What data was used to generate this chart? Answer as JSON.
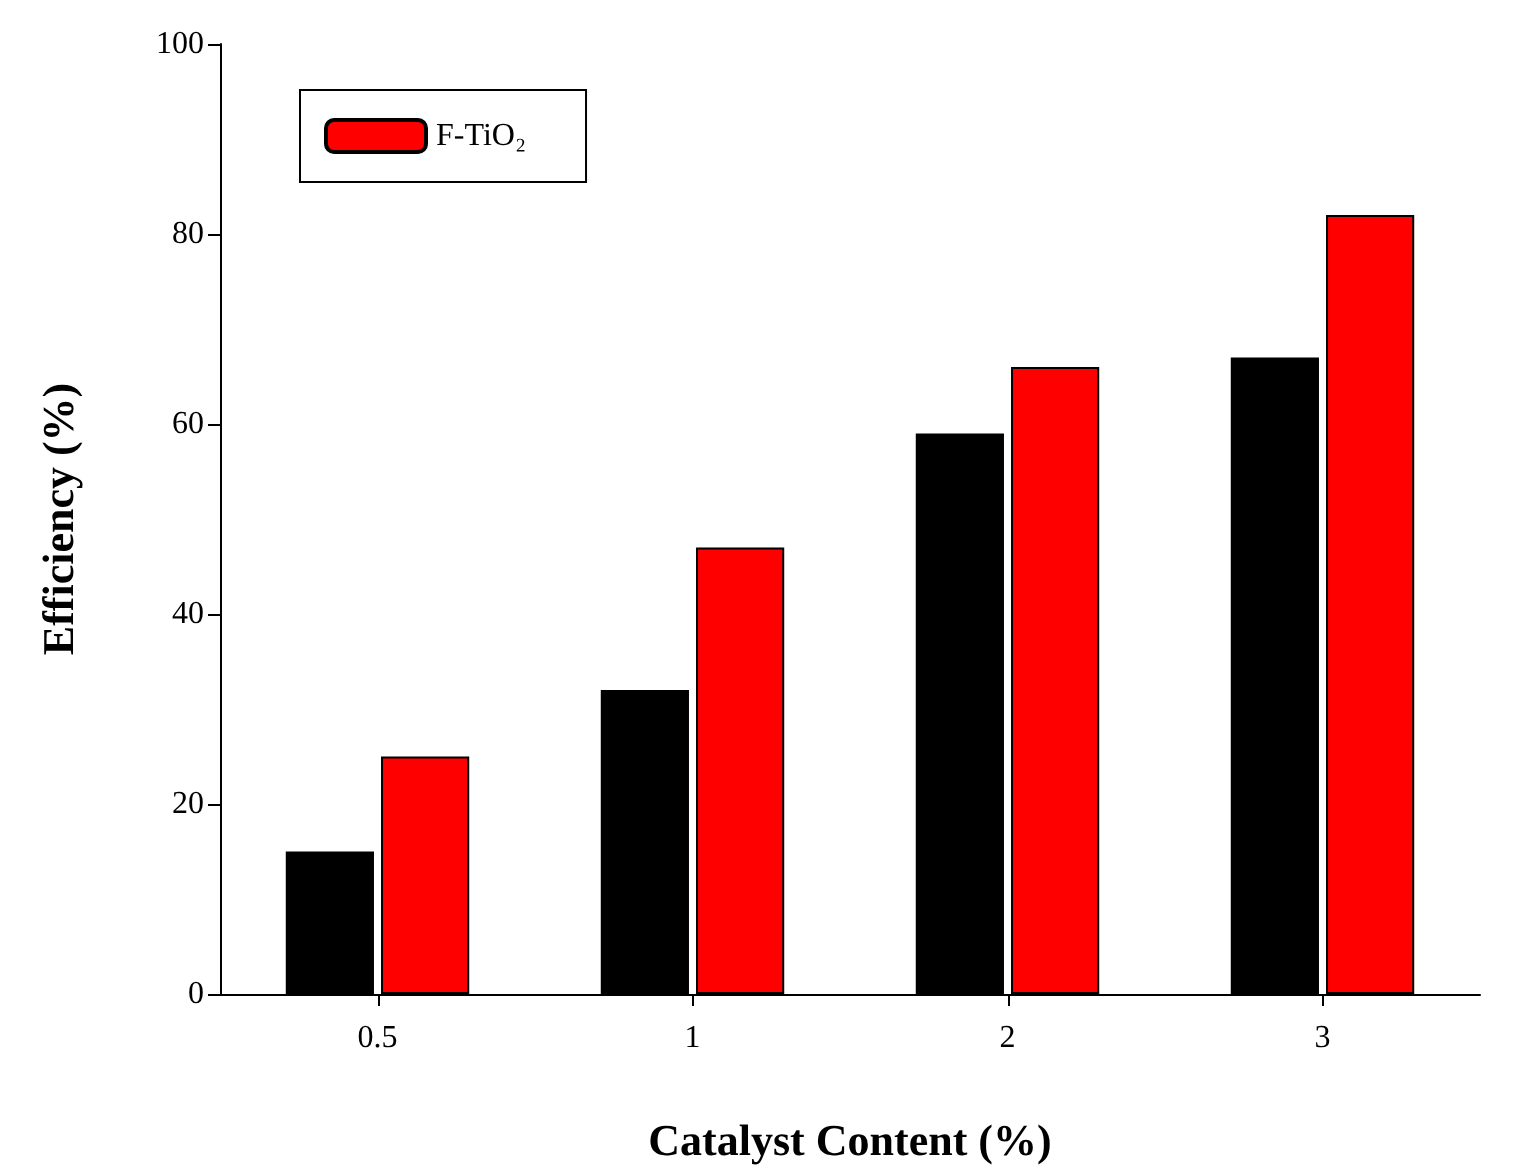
{
  "chart_data": {
    "type": "bar",
    "xlabel": "Catalyst Content (%)",
    "ylabel": "Efficiency (%)",
    "categories": [
      "0.5",
      "1",
      "2",
      "3"
    ],
    "series": [
      {
        "color": "#000000",
        "values": [
          15,
          32,
          59,
          67
        ]
      },
      {
        "name": "F-TiO₂",
        "color": "#ff0000",
        "values": [
          25,
          47,
          66,
          82
        ]
      }
    ],
    "ylim": [
      0,
      100
    ],
    "yticks": [
      0,
      20,
      40,
      60,
      80,
      100
    ],
    "grid": false,
    "legend": "top left"
  }
}
